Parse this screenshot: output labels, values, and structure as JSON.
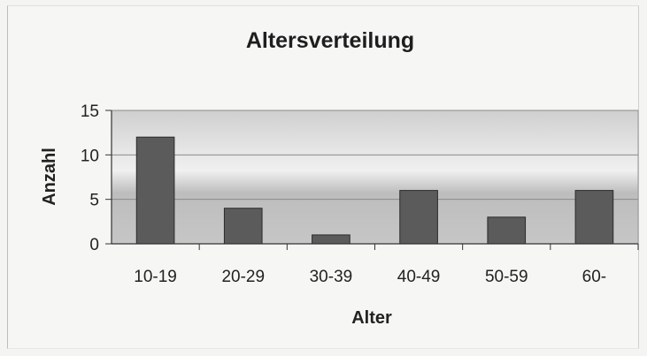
{
  "chart_data": {
    "type": "bar",
    "title": "Altersverteilung",
    "xlabel": "Alter",
    "ylabel": "Anzahl",
    "categories": [
      "10-19",
      "20-29",
      "30-39",
      "40-49",
      "50-59",
      "60-"
    ],
    "values": [
      12,
      4,
      1,
      6,
      3,
      6
    ],
    "ylim": [
      0,
      15
    ],
    "yticks": [
      0,
      5,
      10,
      15
    ],
    "grid": true,
    "legend": "none",
    "colors": {
      "bar": "#5b5b5b",
      "bar_edge": "#2a2a2a",
      "plot_bg": "#d3d3d3",
      "gridline": "#8a8a8a"
    }
  }
}
